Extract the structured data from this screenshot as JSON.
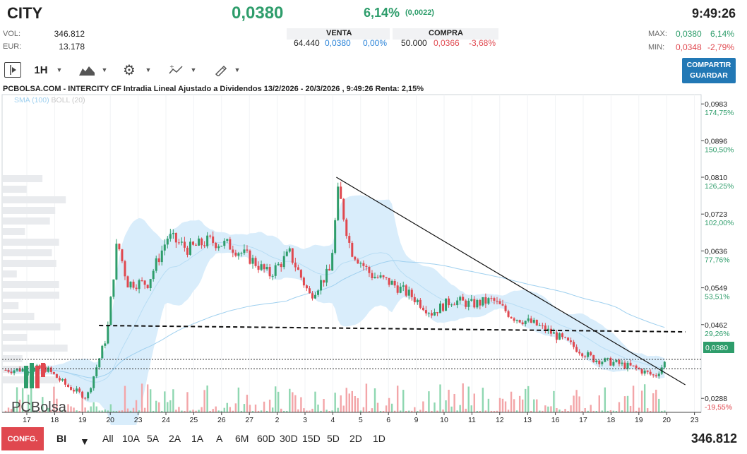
{
  "header": {
    "ticker": "CITY",
    "price": "0,0380",
    "change_pct": "6,14%",
    "change_abs": "(0,0022)",
    "time": "9:49:26",
    "vol_label": "VOL:",
    "vol_value": "346.812",
    "eur_label": "EUR:",
    "eur_value": "13.178",
    "max_label": "MAX:",
    "max_price": "0,0380",
    "max_pct": "6,14%",
    "min_label": "MIN:",
    "min_price": "0,0348",
    "min_pct": "-2,79%"
  },
  "book": {
    "sell_label": "VENTA",
    "sell_qty": "64.440",
    "sell_price": "0,0380",
    "sell_pct": "0,00%",
    "buy_label": "COMPRA",
    "buy_qty": "50.000",
    "buy_price": "0,0366",
    "buy_pct": "-3,68%"
  },
  "toolbar": {
    "interval": "1H",
    "share_line1": "COMPARTIR",
    "share_line2": "GUARDAR",
    "icons": [
      "play-panel-icon",
      "mountain-chart-icon",
      "gear-icon",
      "indicators-icon",
      "pencil-icon"
    ]
  },
  "chart": {
    "title": "PCBOLSA.COM - INTERCITY CF Intradia Lineal Ajustado a Dividendos 13/2/2026 - 20/3/2026 , 9:49:26 Renta: 2,15%",
    "indicator_sma": "SMA (100)",
    "indicator_boll": "BOLL (20)",
    "watermark": "PCBolsa",
    "current_price_label": "0,0380",
    "colors": {
      "up": "#2e9d6b",
      "down": "#e0484f",
      "band": "#d6ecfa",
      "sma": "#9fd0ef"
    }
  },
  "chart_data": {
    "type": "candlestick",
    "title": "PCBOLSA.COM - INTERCITY CF Intradia Lineal Ajustado a Dividendos 13/2/2026 - 20/3/2026 , 9:49:26 Renta: 2,15%",
    "x_ticks": [
      "17",
      "18",
      "19",
      "20",
      "23",
      "24",
      "25",
      "26",
      "27",
      "2",
      "3",
      "4",
      "5",
      "6",
      "9",
      "10",
      "11",
      "12",
      "13",
      "16",
      "17",
      "18",
      "19",
      "20",
      "23"
    ],
    "y_ticks": [
      {
        "price": "0,0983",
        "pct": "174,75%",
        "value": 0.0983
      },
      {
        "price": "0,0896",
        "pct": "150,50%",
        "value": 0.0896
      },
      {
        "price": "0,0810",
        "pct": "126,25%",
        "value": 0.081
      },
      {
        "price": "0,0723",
        "pct": "102,00%",
        "value": 0.0723
      },
      {
        "price": "0,0636",
        "pct": "77,76%",
        "value": 0.0636
      },
      {
        "price": "0,0549",
        "pct": "53,51%",
        "value": 0.0549
      },
      {
        "price": "0,0462",
        "pct": "29,26%",
        "value": 0.0462
      },
      {
        "price": "0,0288",
        "pct": "-19,55%",
        "value": 0.0288
      }
    ],
    "close_path": [
      {
        "x": 0,
        "y": 0.0355
      },
      {
        "x": 2,
        "y": 0.0358
      },
      {
        "x": 3,
        "y": 0.0318
      },
      {
        "x": 4,
        "y": 0.029
      },
      {
        "x": 5,
        "y": 0.044
      },
      {
        "x": 5.5,
        "y": 0.066
      },
      {
        "x": 6,
        "y": 0.056
      },
      {
        "x": 7,
        "y": 0.056
      },
      {
        "x": 8,
        "y": 0.067
      },
      {
        "x": 9,
        "y": 0.064
      },
      {
        "x": 10,
        "y": 0.066
      },
      {
        "x": 11,
        "y": 0.065
      },
      {
        "x": 12,
        "y": 0.062
      },
      {
        "x": 13,
        "y": 0.058
      },
      {
        "x": 14,
        "y": 0.063
      },
      {
        "x": 15,
        "y": 0.053
      },
      {
        "x": 16,
        "y": 0.059
      },
      {
        "x": 16.4,
        "y": 0.078
      },
      {
        "x": 17,
        "y": 0.064
      },
      {
        "x": 18,
        "y": 0.058
      },
      {
        "x": 19,
        "y": 0.056
      },
      {
        "x": 20,
        "y": 0.053
      },
      {
        "x": 21,
        "y": 0.049
      },
      {
        "x": 22,
        "y": 0.052
      },
      {
        "x": 23,
        "y": 0.051
      },
      {
        "x": 24,
        "y": 0.052
      },
      {
        "x": 25,
        "y": 0.048
      },
      {
        "x": 26,
        "y": 0.0465
      },
      {
        "x": 27,
        "y": 0.044
      },
      {
        "x": 28,
        "y": 0.041
      },
      {
        "x": 29,
        "y": 0.038
      },
      {
        "x": 30,
        "y": 0.0372
      },
      {
        "x": 31,
        "y": 0.036
      },
      {
        "x": 32,
        "y": 0.034
      },
      {
        "x": 32.6,
        "y": 0.038
      }
    ],
    "support_line": [
      {
        "x": 4.6,
        "y": 0.046
      },
      {
        "x": 33.5,
        "y": 0.0445
      }
    ],
    "resistance_line": [
      {
        "x": 16.3,
        "y": 0.081
      },
      {
        "x": 33.5,
        "y": 0.032
      }
    ]
  },
  "footer": {
    "config_label": "CONFG.",
    "mode": "BI",
    "ranges": [
      "All",
      "10A",
      "5A",
      "2A",
      "1A",
      "A",
      "6M",
      "60D",
      "30D",
      "15D",
      "5D",
      "2D",
      "1D"
    ],
    "volume_total": "346.812"
  }
}
